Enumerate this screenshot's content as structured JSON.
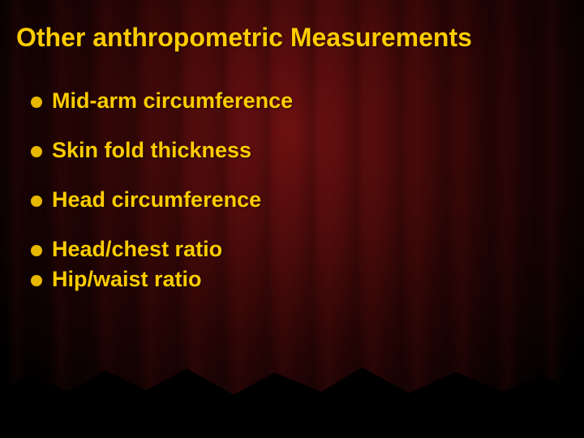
{
  "title": "Other anthropometric Measurements",
  "title_color": "#ffcc00",
  "bullet_color": "#e6b800",
  "text_color": "#ffcc00",
  "items": [
    "Mid-arm circumference",
    "Skin fold thickness",
    "Head circumference",
    "Head/chest ratio",
    "Hip/waist ratio"
  ],
  "background": {
    "tone": "dark-red-curtain",
    "center_color": "#6b1010",
    "edge_color": "#000000"
  },
  "typography": {
    "title_fontsize": 32,
    "body_fontsize": 27,
    "font_family": "Verdana",
    "font_weight": "bold"
  }
}
